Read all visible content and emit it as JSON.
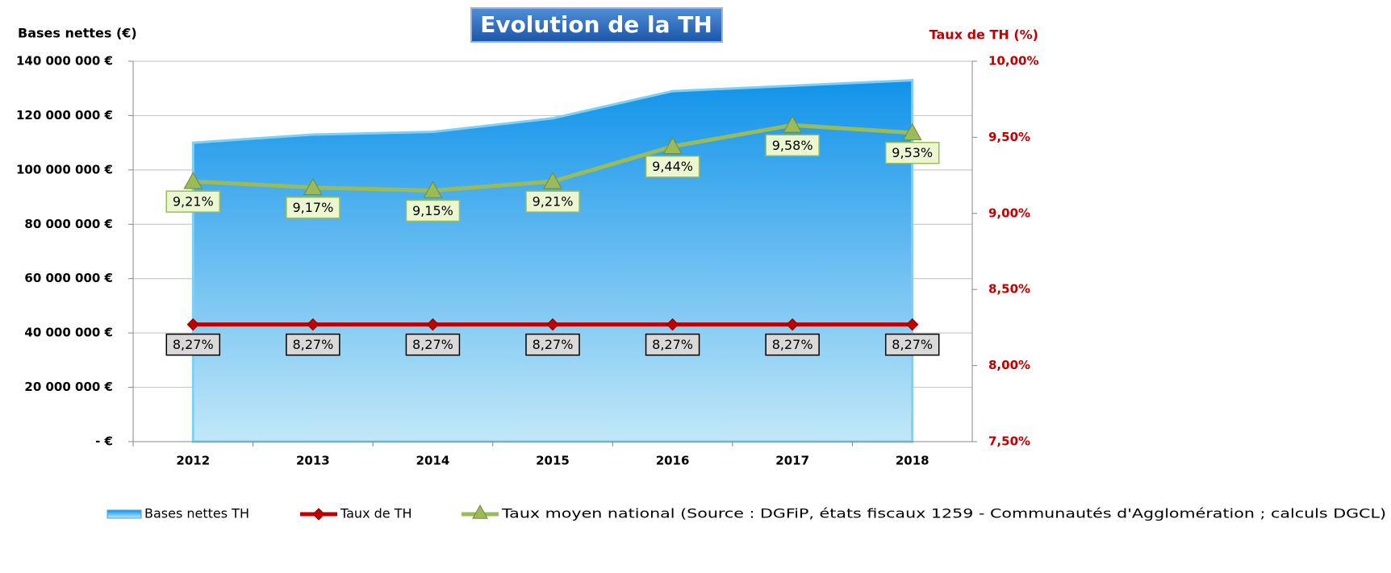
{
  "chart_data": {
    "type": "area-line",
    "title": "Evolution de la TH",
    "y_label": "Bases nettes (€)",
    "y2_label": "Taux de TH (%)",
    "categories": [
      "2012",
      "2013",
      "2014",
      "2015",
      "2016",
      "2017",
      "2018"
    ],
    "series": [
      {
        "name": "Bases nettes TH",
        "type": "area",
        "color": "#1a9be8",
        "values": [
          110000000,
          113000000,
          114000000,
          119000000,
          129000000,
          131000000,
          133000000
        ]
      },
      {
        "name": "Taux de TH",
        "type": "line",
        "axis": "y2",
        "color": "#c00000",
        "marker": "diamond",
        "values": [
          8.27,
          8.27,
          8.27,
          8.27,
          8.27,
          8.27,
          8.27
        ],
        "value_labels": [
          "8,27%",
          "8,27%",
          "8,27%",
          "8,27%",
          "8,27%",
          "8,27%",
          "8,27%"
        ]
      },
      {
        "name": "Taux moyen national (Source : DGFiP, états fiscaux 1259 - Communautés d'Agglomération ; calculs DGCL)",
        "type": "line",
        "axis": "y2",
        "color": "#9bbb59",
        "marker": "triangle",
        "values": [
          9.21,
          9.17,
          9.15,
          9.21,
          9.44,
          9.58,
          9.53
        ],
        "value_labels": [
          "9,21%",
          "9,17%",
          "9,15%",
          "9,21%",
          "9,44%",
          "9,58%",
          "9,53%"
        ]
      }
    ],
    "ylim": [
      0,
      140000000
    ],
    "yticks": [
      {
        "value": 0,
        "label": "- €"
      },
      {
        "value": 20000000,
        "label": "20 000 000 €"
      },
      {
        "value": 40000000,
        "label": "40 000 000 €"
      },
      {
        "value": 60000000,
        "label": "60 000 000 €"
      },
      {
        "value": 80000000,
        "label": "80 000 000 €"
      },
      {
        "value": 100000000,
        "label": "100 000 000 €"
      },
      {
        "value": 120000000,
        "label": "120 000 000 €"
      },
      {
        "value": 140000000,
        "label": "140 000 000 €"
      }
    ],
    "y2lim": [
      7.5,
      10
    ],
    "y2ticks": [
      {
        "value": 7.5,
        "label": "7,50%"
      },
      {
        "value": 8,
        "label": "8,00%"
      },
      {
        "value": 8.5,
        "label": "8,50%"
      },
      {
        "value": 9,
        "label": "9,00%"
      },
      {
        "value": 9.5,
        "label": "9,50%"
      },
      {
        "value": 10,
        "label": "10,00%"
      }
    ],
    "grid": true,
    "legend": "bottom"
  }
}
